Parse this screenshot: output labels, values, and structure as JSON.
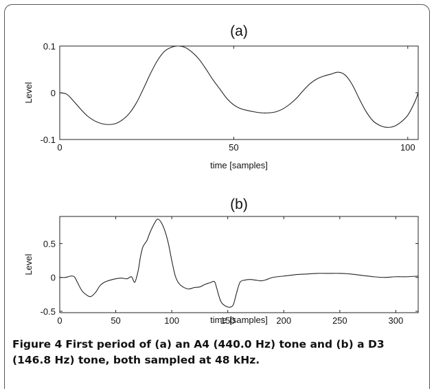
{
  "caption": {
    "label": "Figure 4",
    "text": "First period of (a) an A4 (440.0 Hz) tone and (b) a D3 (146.8 Hz) tone, both sampled at 48 kHz."
  },
  "chart_data": [
    {
      "type": "line",
      "title": "(a)",
      "xlabel": "time [samples]",
      "ylabel": "Level",
      "xlim": [
        0,
        103
      ],
      "ylim": [
        -0.1,
        0.1
      ],
      "xticks": [
        0,
        50,
        100
      ],
      "yticks": [
        -0.1,
        0,
        0.1
      ],
      "xtick_labels": [
        "0",
        "50",
        "100"
      ],
      "ytick_labels": [
        "-0.1",
        "0",
        "0.1"
      ],
      "grid": false,
      "series": [
        {
          "x": [
            0,
            2,
            4,
            6,
            8,
            10,
            12,
            14,
            16,
            18,
            20,
            22,
            24,
            26,
            28,
            30,
            32,
            34,
            36,
            38,
            40,
            42,
            44,
            46,
            48,
            50,
            52,
            54,
            56,
            58,
            60,
            62,
            64,
            66,
            68,
            70,
            72,
            74,
            76,
            78,
            80,
            82,
            84,
            86,
            88,
            90,
            92,
            94,
            96,
            98,
            100,
            102,
            103
          ],
          "y": [
            0,
            -0.003,
            -0.018,
            -0.035,
            -0.05,
            -0.06,
            -0.066,
            -0.068,
            -0.066,
            -0.058,
            -0.044,
            -0.022,
            0.008,
            0.04,
            0.068,
            0.088,
            0.097,
            0.1,
            0.097,
            0.087,
            0.072,
            0.051,
            0.028,
            0.008,
            -0.012,
            -0.026,
            -0.034,
            -0.038,
            -0.041,
            -0.043,
            -0.043,
            -0.041,
            -0.035,
            -0.025,
            -0.012,
            0.005,
            0.02,
            0.03,
            0.036,
            0.04,
            0.044,
            0.038,
            0.018,
            -0.012,
            -0.04,
            -0.06,
            -0.07,
            -0.074,
            -0.072,
            -0.063,
            -0.048,
            -0.02,
            0
          ]
        }
      ]
    },
    {
      "type": "line",
      "title": "(b)",
      "xlabel": "time [samples]",
      "ylabel": "Level",
      "xlim": [
        0,
        320
      ],
      "ylim": [
        -0.52,
        0.9
      ],
      "xticks": [
        0,
        50,
        100,
        150,
        200,
        250,
        300
      ],
      "yticks": [
        -0.5,
        0,
        0.5
      ],
      "xtick_labels": [
        "0",
        "50",
        "100",
        "150",
        "200",
        "250",
        "300"
      ],
      "ytick_labels": [
        "-0.5",
        "0",
        "0.5"
      ],
      "grid": false,
      "series": [
        {
          "x": [
            0,
            5,
            10,
            13,
            16,
            20,
            25,
            28,
            32,
            36,
            40,
            45,
            50,
            55,
            60,
            64,
            67,
            70,
            72,
            74,
            76,
            78,
            80,
            83,
            86,
            88,
            91,
            94,
            97,
            100,
            103,
            106,
            110,
            115,
            120,
            125,
            130,
            134,
            138,
            140,
            142,
            144,
            146,
            149,
            152,
            155,
            158,
            161,
            165,
            170,
            175,
            180,
            185,
            190,
            200,
            210,
            220,
            230,
            240,
            250,
            260,
            270,
            280,
            290,
            300,
            310,
            320
          ],
          "y": [
            0,
            0.0,
            0.02,
            0.01,
            -0.08,
            -0.2,
            -0.27,
            -0.28,
            -0.22,
            -0.12,
            -0.07,
            -0.04,
            -0.02,
            -0.01,
            -0.02,
            0.01,
            -0.07,
            0.1,
            0.3,
            0.44,
            0.5,
            0.55,
            0.64,
            0.75,
            0.84,
            0.86,
            0.8,
            0.68,
            0.5,
            0.25,
            0.03,
            -0.08,
            -0.14,
            -0.17,
            -0.15,
            -0.14,
            -0.1,
            -0.08,
            -0.06,
            -0.15,
            -0.27,
            -0.36,
            -0.4,
            -0.43,
            -0.44,
            -0.4,
            -0.22,
            -0.07,
            -0.04,
            -0.03,
            -0.04,
            -0.05,
            -0.03,
            0.0,
            0.02,
            0.04,
            0.05,
            0.06,
            0.06,
            0.06,
            0.05,
            0.03,
            0.01,
            0.0,
            0.01,
            0.01,
            0.02
          ]
        }
      ]
    }
  ]
}
